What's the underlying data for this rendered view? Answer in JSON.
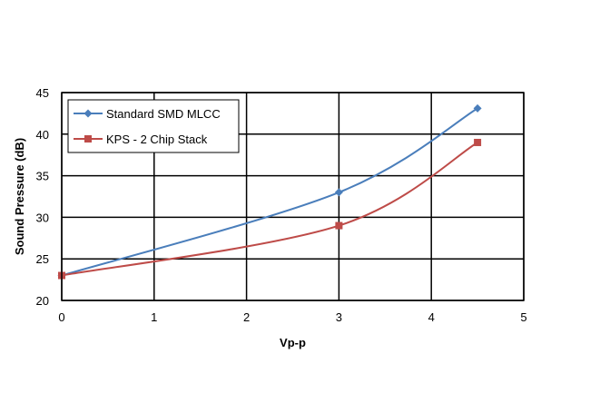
{
  "chart_data": {
    "type": "line",
    "xlabel": "Vp-p",
    "ylabel": "Sound Pressure  (dB)",
    "xlim": [
      0,
      5
    ],
    "ylim": [
      20,
      45
    ],
    "xticks": [
      "0",
      "1",
      "2",
      "3",
      "4",
      "5"
    ],
    "yticks": [
      "20",
      "25",
      "30",
      "35",
      "40",
      "45"
    ],
    "grid": true,
    "legend_position": "top-left",
    "series": [
      {
        "name": "Standard SMD MLCC",
        "color": "#4a7ebb",
        "marker": "diamond",
        "x": [
          0,
          3,
          4.5
        ],
        "y": [
          23,
          33,
          43.1
        ]
      },
      {
        "name": "KPS - 2 Chip Stack",
        "color": "#be4b48",
        "marker": "square",
        "x": [
          0,
          3,
          4.5
        ],
        "y": [
          23,
          29,
          39
        ]
      }
    ]
  }
}
